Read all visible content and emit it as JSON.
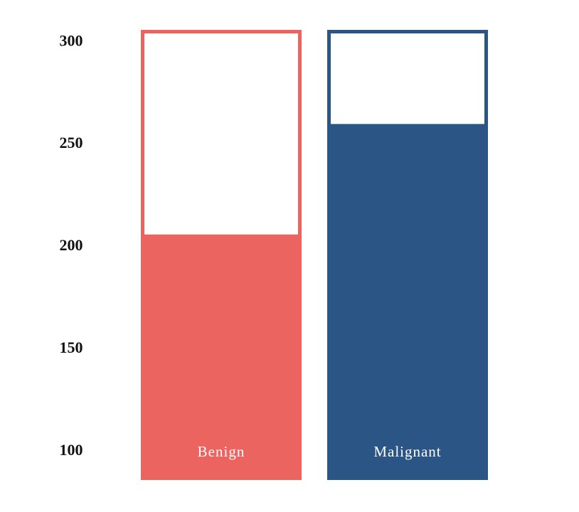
{
  "chart_data": {
    "type": "bar",
    "categories": [
      "Benign",
      "Malignant"
    ],
    "values": [
      206,
      260
    ],
    "colors": [
      "#ec6460",
      "#2b5585"
    ],
    "ylim": [
      86,
      306
    ],
    "yticks": [
      100,
      150,
      200,
      250,
      300
    ],
    "grid": false
  }
}
